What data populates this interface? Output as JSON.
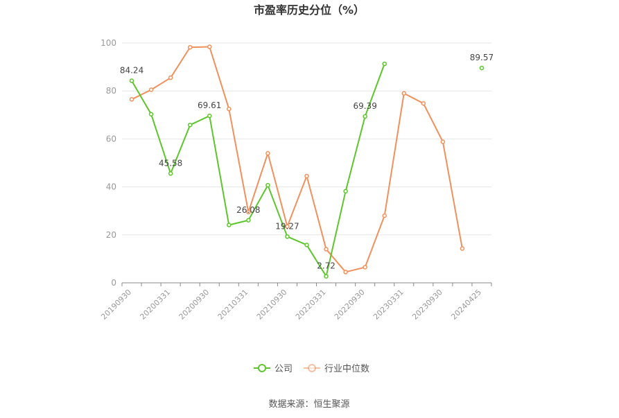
{
  "chart_data": {
    "type": "line",
    "title": "市盈率历史分位（%）",
    "source": "数据来源：恒生聚源",
    "ylim": [
      0,
      100
    ],
    "yticks": [
      0,
      20,
      40,
      60,
      80,
      100
    ],
    "grid": true,
    "legend_position": "bottom",
    "x": [
      "20190930",
      "20191231",
      "20200331",
      "20200630",
      "20200930",
      "20201231",
      "20210331",
      "20210630",
      "20210930",
      "20211231",
      "20220331",
      "20220630",
      "20220930",
      "20221231",
      "20230331",
      "20230630",
      "20230930",
      "20231231",
      "20240425"
    ],
    "x_tick_labels": [
      "20190930",
      "20200331",
      "20200930",
      "20210331",
      "20210930",
      "20220331",
      "20220930",
      "20230331",
      "20230930",
      "20240425"
    ],
    "series": [
      {
        "name": "公司",
        "color": "#5cc52c",
        "values": [
          84.24,
          70.3,
          45.58,
          65.8,
          69.61,
          24.1,
          26.08,
          40.7,
          19.27,
          15.8,
          2.72,
          38.2,
          69.39,
          91.3,
          null,
          null,
          null,
          null,
          89.57
        ],
        "labels": [
          "84.24",
          null,
          "45.58",
          null,
          "69.61",
          null,
          "26.08",
          null,
          "19.27",
          null,
          "2.72",
          null,
          "69.39",
          null,
          null,
          null,
          null,
          null,
          "89.57"
        ]
      },
      {
        "name": "行业中位数",
        "color": "#f0905c",
        "values": [
          76.5,
          80.5,
          85.5,
          98.2,
          98.4,
          72.5,
          29.5,
          54.0,
          23.5,
          44.5,
          14.0,
          4.5,
          6.5,
          28.0,
          79.0,
          74.8,
          58.8,
          14.3,
          null
        ]
      }
    ]
  }
}
